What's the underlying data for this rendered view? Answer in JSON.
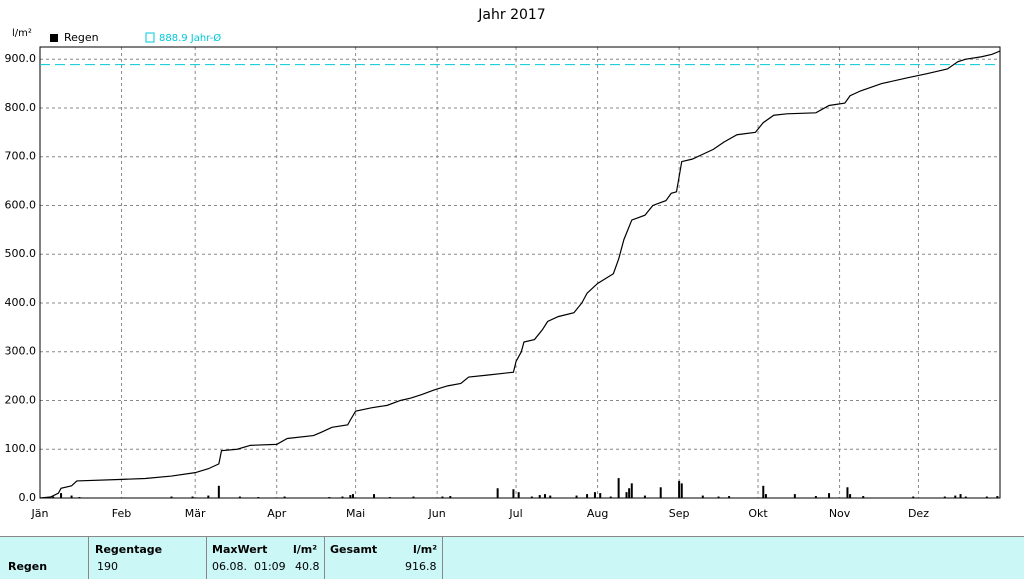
{
  "chart_data": {
    "type": "line",
    "title": "Jahr 2017",
    "y_label": "l/m²",
    "xlim": [
      0,
      365
    ],
    "ylim": [
      0,
      925
    ],
    "xticks": [
      {
        "value": 0,
        "label": "Jän"
      },
      {
        "value": 31,
        "label": "Feb"
      },
      {
        "value": 59,
        "label": "Mär"
      },
      {
        "value": 90,
        "label": "Apr"
      },
      {
        "value": 120,
        "label": "Mai"
      },
      {
        "value": 151,
        "label": "Jun"
      },
      {
        "value": 181,
        "label": "Jul"
      },
      {
        "value": 212,
        "label": "Aug"
      },
      {
        "value": 243,
        "label": "Sep"
      },
      {
        "value": 273,
        "label": "Okt"
      },
      {
        "value": 304,
        "label": "Nov"
      },
      {
        "value": 334,
        "label": "Dez"
      }
    ],
    "yticks": [
      {
        "value": 0,
        "label": "0.0"
      },
      {
        "value": 100,
        "label": "100.0"
      },
      {
        "value": 200,
        "label": "200.0"
      },
      {
        "value": 300,
        "label": "300.0"
      },
      {
        "value": 400,
        "label": "400.0"
      },
      {
        "value": 500,
        "label": "500.0"
      },
      {
        "value": 600,
        "label": "600.0"
      },
      {
        "value": 700,
        "label": "700.0"
      },
      {
        "value": 800,
        "label": "800.0"
      },
      {
        "value": 900,
        "label": "900.0"
      }
    ],
    "grid": true,
    "reference": {
      "value": 888.9,
      "label": "888.9 Jahr-Ø",
      "color": "#00c8d8"
    },
    "series": [
      {
        "name": "Regen",
        "type": "bar",
        "color": "#000000",
        "x": [
          5,
          8,
          12,
          15,
          50,
          58,
          64,
          68,
          76,
          83,
          93,
          110,
          115,
          118,
          119,
          127,
          133,
          142,
          153,
          156,
          174,
          180,
          182,
          187,
          190,
          192,
          194,
          204,
          208,
          211,
          213,
          217,
          220,
          223,
          224,
          225,
          230,
          236,
          243,
          244,
          252,
          258,
          262,
          275,
          276,
          287,
          295,
          300,
          307,
          308,
          313,
          332,
          344,
          348,
          350,
          352,
          360,
          364
        ],
        "values": [
          3,
          10,
          5,
          2,
          3,
          3,
          5,
          25,
          3,
          2,
          3,
          2,
          3,
          6,
          8,
          8,
          2,
          3,
          3,
          4,
          20,
          18,
          12,
          3,
          6,
          8,
          5,
          5,
          8,
          12,
          10,
          3,
          40.8,
          12,
          20,
          30,
          5,
          22,
          35,
          30,
          5,
          3,
          4,
          25,
          8,
          8,
          4,
          10,
          22,
          8,
          4,
          3,
          3,
          5,
          8,
          3,
          3,
          4
        ]
      },
      {
        "type": "line",
        "color": "#000000",
        "x": [
          0,
          4,
          7,
          8,
          12,
          14,
          30,
          40,
          50,
          59,
          64,
          68,
          69,
          75,
          80,
          90,
          94,
          104,
          107,
          111,
          117,
          118,
          120,
          126,
          132,
          137,
          141,
          145,
          150,
          155,
          160,
          163,
          170,
          175,
          180,
          181,
          183,
          184,
          188,
          191,
          193,
          197,
          203,
          206,
          208,
          212,
          215,
          218,
          220,
          222,
          225,
          230,
          233,
          238,
          240,
          242,
          244,
          248,
          252,
          256,
          260,
          265,
          272,
          275,
          279,
          284,
          295,
          300,
          306,
          308,
          312,
          320,
          330,
          337,
          345,
          349,
          352,
          358,
          362,
          365
        ],
        "values": [
          0,
          2,
          10,
          20,
          25,
          35,
          38,
          40,
          45,
          52,
          60,
          70,
          97,
          100,
          108,
          110,
          122,
          128,
          135,
          145,
          150,
          160,
          178,
          185,
          190,
          200,
          205,
          212,
          222,
          230,
          235,
          248,
          252,
          255,
          258,
          280,
          300,
          320,
          325,
          345,
          362,
          372,
          380,
          400,
          420,
          440,
          450,
          460,
          490,
          530,
          570,
          580,
          600,
          610,
          625,
          628,
          690,
          695,
          705,
          715,
          730,
          745,
          750,
          770,
          785,
          788,
          790,
          805,
          810,
          825,
          835,
          850,
          862,
          870,
          880,
          895,
          900,
          905,
          910,
          916.8
        ]
      }
    ]
  },
  "table": {
    "headers": [
      "Regentage",
      "MaxWert",
      "l/m²",
      "Gesamt",
      "l/m²"
    ],
    "rows": [
      [
        "Regen",
        "190",
        "06.08.  01:09",
        "40.8",
        "916.8"
      ]
    ]
  }
}
